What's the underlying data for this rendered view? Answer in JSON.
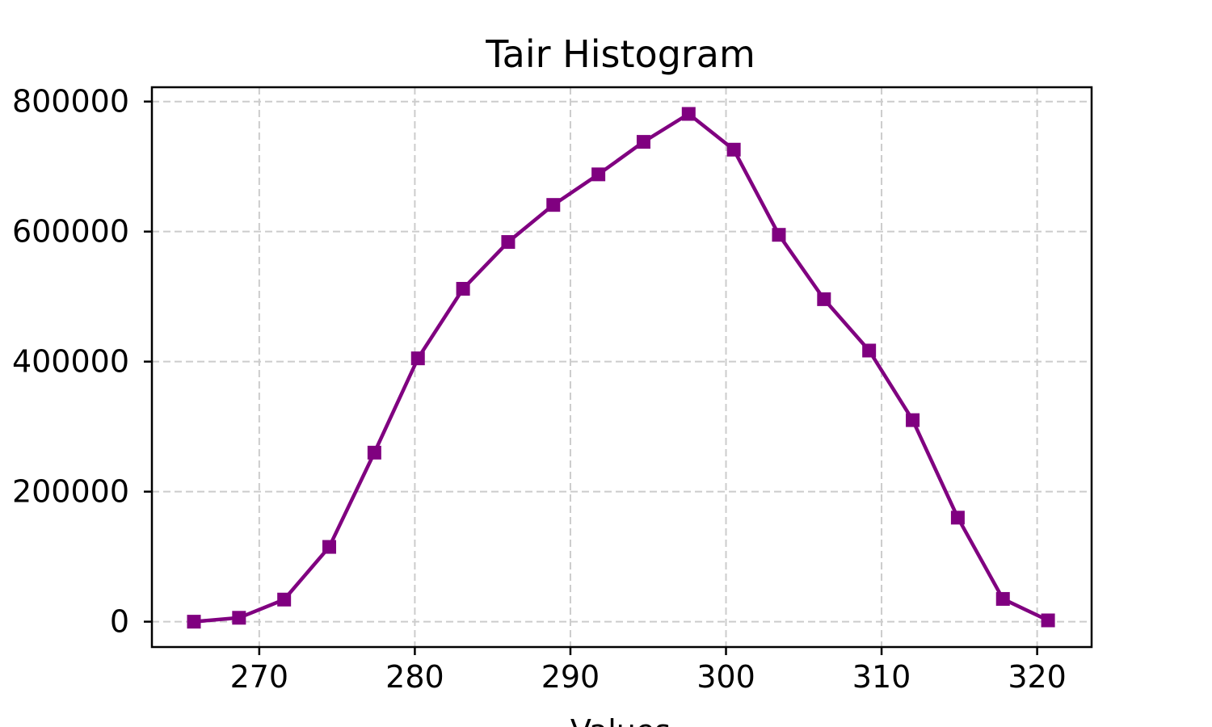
{
  "chart_data": {
    "type": "line",
    "title": "Tair Histogram",
    "xlabel": "Values",
    "ylabel": "",
    "xlim": [
      263.1,
      323.5
    ],
    "ylim": [
      -39000,
      822000
    ],
    "xticks": [
      270,
      280,
      290,
      300,
      310,
      320
    ],
    "yticks": [
      0,
      200000,
      400000,
      600000,
      800000
    ],
    "grid": true,
    "series": [
      {
        "color": "#800080",
        "marker": "square",
        "x": [
          265.8,
          268.7,
          271.6,
          274.5,
          277.4,
          280.2,
          283.1,
          286.0,
          288.9,
          291.8,
          294.7,
          297.6,
          300.5,
          303.4,
          306.3,
          309.2,
          312.0,
          314.9,
          317.8,
          320.7
        ],
        "values": [
          0,
          6000,
          34000,
          115000,
          260000,
          405000,
          512000,
          584000,
          641000,
          688000,
          738000,
          781000,
          726000,
          595000,
          496000,
          417000,
          310000,
          160000,
          35000,
          2000
        ]
      }
    ]
  }
}
